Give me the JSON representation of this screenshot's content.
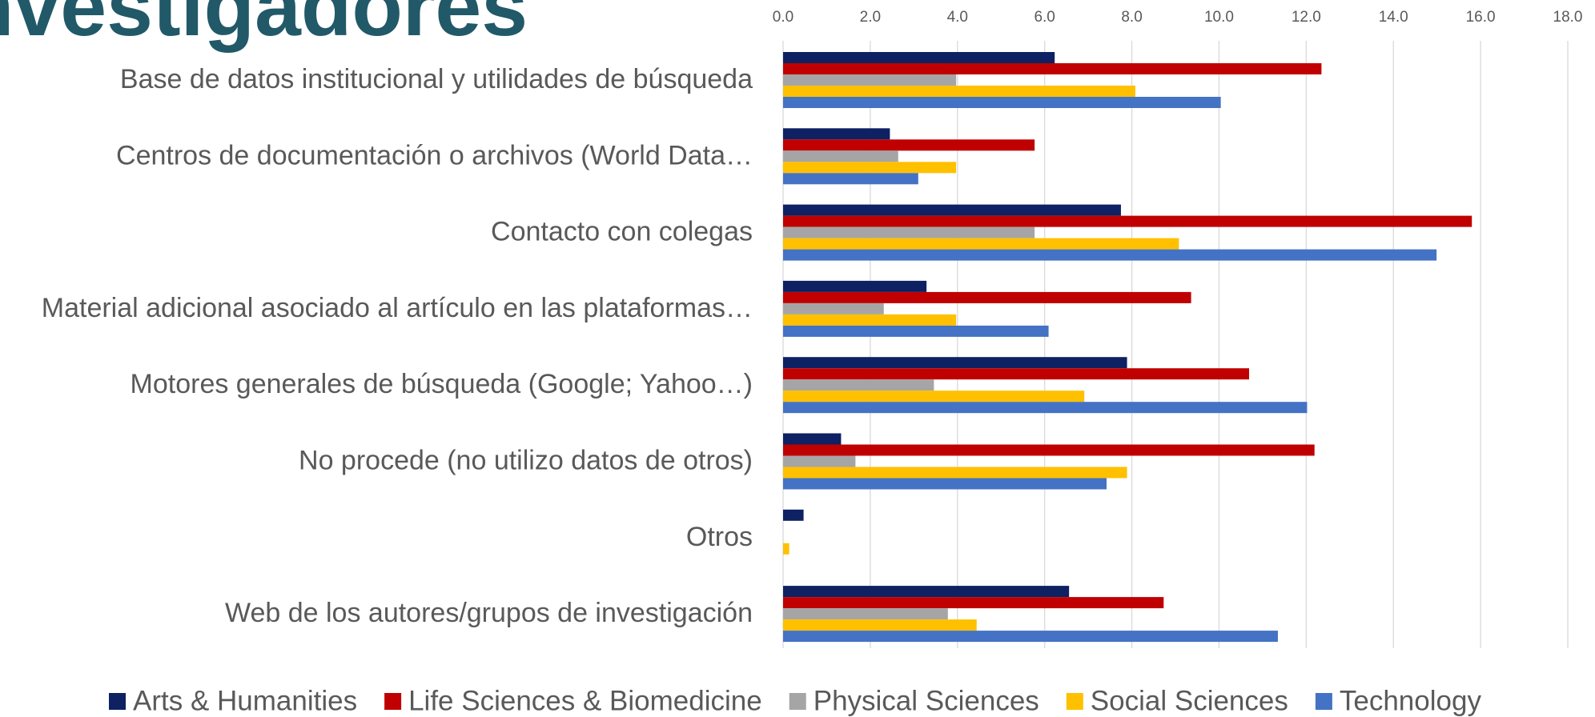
{
  "chart_data": {
    "type": "barh",
    "title": "Investigadores",
    "categories": [
      "Base de datos institucional y utilidades de búsqueda",
      "Centros de documentación o archivos (World Data…",
      "Contacto con colegas",
      "Material adicional asociado al artículo en las plataformas…",
      "Motores generales de búsqueda (Google; Yahoo…)",
      "No procede (no utilizo datos de otros)",
      "Otros",
      "Web de los autores/grupos de investigación"
    ],
    "series": [
      {
        "name": "Arts & Humanities",
        "color": "#0d2163",
        "values": [
          6.23,
          2.45,
          7.75,
          3.29,
          7.89,
          1.33,
          0.47,
          6.56
        ]
      },
      {
        "name": "Life Sciences & Biomedicine",
        "color": "#c00000",
        "values": [
          12.35,
          5.77,
          15.8,
          9.36,
          10.69,
          12.19,
          0,
          8.73
        ]
      },
      {
        "name": "Physical Sciences",
        "color": "#a5a5a5",
        "values": [
          3.97,
          2.64,
          5.77,
          2.31,
          3.46,
          1.66,
          0,
          3.78
        ]
      },
      {
        "name": "Social Sciences",
        "color": "#ffc000",
        "values": [
          8.08,
          3.97,
          9.08,
          3.97,
          6.91,
          7.89,
          0.14,
          4.44
        ]
      },
      {
        "name": "Technology",
        "color": "#4472c4",
        "values": [
          10.04,
          3.1,
          14.99,
          6.09,
          12.02,
          7.42,
          0,
          11.35
        ]
      }
    ],
    "xlim": [
      0,
      18
    ],
    "xticks": [
      {
        "value": 0,
        "label": "0.0"
      },
      {
        "value": 2,
        "label": "2.0"
      },
      {
        "value": 4,
        "label": "4.0"
      },
      {
        "value": 6,
        "label": "6.0"
      },
      {
        "value": 8,
        "label": "8.0"
      },
      {
        "value": 10,
        "label": "10.0"
      },
      {
        "value": 12,
        "label": "12.0"
      },
      {
        "value": 14,
        "label": "14.0"
      },
      {
        "value": 16,
        "label": "16.0"
      },
      {
        "value": 18,
        "label": "18.0"
      }
    ],
    "grid": true,
    "legend": "bottom"
  }
}
